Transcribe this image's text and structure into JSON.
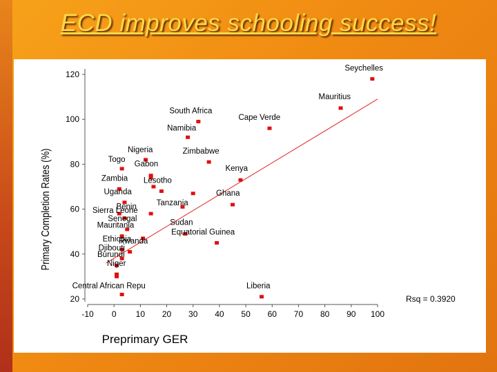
{
  "slide": {
    "title": "ECD improves schooling success!"
  },
  "chart_data": {
    "type": "scatter",
    "title": "",
    "xlabel": "Preprimary GER",
    "ylabel": "Primary Completion Rates (%)",
    "xlim": [
      -10,
      100
    ],
    "ylim": [
      20,
      120
    ],
    "x_ticks": [
      -10,
      0,
      10,
      20,
      30,
      40,
      50,
      60,
      70,
      80,
      90,
      100
    ],
    "y_ticks": [
      20,
      40,
      60,
      80,
      100,
      120
    ],
    "points": [
      {
        "label": "Seychelles",
        "x": 98,
        "y": 118
      },
      {
        "label": "Mauritius",
        "x": 86,
        "y": 105
      },
      {
        "label": "South Africa",
        "x": 32,
        "y": 99
      },
      {
        "label": "Cape Verde",
        "x": 59,
        "y": 96
      },
      {
        "label": "Namibia",
        "x": 28,
        "y": 92
      },
      {
        "label": "Nigeria",
        "x": 12,
        "y": 82
      },
      {
        "label": "Zimbabwe",
        "x": 36,
        "y": 81
      },
      {
        "label": "Togo",
        "x": 3,
        "y": 78
      },
      {
        "label": "Gabon",
        "x": 14,
        "y": 75
      },
      {
        "label": "",
        "x": 14,
        "y": 74
      },
      {
        "label": "Kenya",
        "x": 48,
        "y": 73
      },
      {
        "label": "Zambia",
        "x": 2,
        "y": 69
      },
      {
        "label": "",
        "x": 15,
        "y": 70
      },
      {
        "label": "Lesotho",
        "x": 18,
        "y": 68
      },
      {
        "label": "",
        "x": 30,
        "y": 67
      },
      {
        "label": "Uganda",
        "x": 4,
        "y": 63
      },
      {
        "label": "Ghana",
        "x": 45,
        "y": 62
      },
      {
        "label": "",
        "x": 26,
        "y": 61
      },
      {
        "label": "Tanzania",
        "x": 14,
        "y": 58
      },
      {
        "label": "Sierra Leone",
        "x": 2,
        "y": 58
      },
      {
        "label": "Benin",
        "x": 4,
        "y": 56
      },
      {
        "label": "Senegal",
        "x": 5,
        "y": 51
      },
      {
        "label": "Sudan",
        "x": 27,
        "y": 49
      },
      {
        "label": "Mauritania",
        "x": 3,
        "y": 48
      },
      {
        "label": "",
        "x": 11,
        "y": 47
      },
      {
        "label": "Equatorial Guinea",
        "x": 39,
        "y": 45
      },
      {
        "label": "Ethiopia",
        "x": 3,
        "y": 42
      },
      {
        "label": "Rwanda",
        "x": 6,
        "y": 41
      },
      {
        "label": "Djibouti",
        "x": 3,
        "y": 38
      },
      {
        "label": "Burundi",
        "x": 1,
        "y": 35
      },
      {
        "label": "Niger",
        "x": 1,
        "y": 31
      },
      {
        "label": "",
        "x": 1,
        "y": 30
      },
      {
        "label": "Central African Repu",
        "x": 3,
        "y": 22
      },
      {
        "label": "Liberia",
        "x": 56,
        "y": 21
      }
    ],
    "trendline": {
      "x": [
        -3,
        100
      ],
      "y": [
        36,
        109
      ]
    },
    "annotation": "Rsq = 0.3920",
    "colors": {
      "marker": "#e01010",
      "line": "#e02020",
      "text": "#000000",
      "axis": "#555555"
    }
  }
}
